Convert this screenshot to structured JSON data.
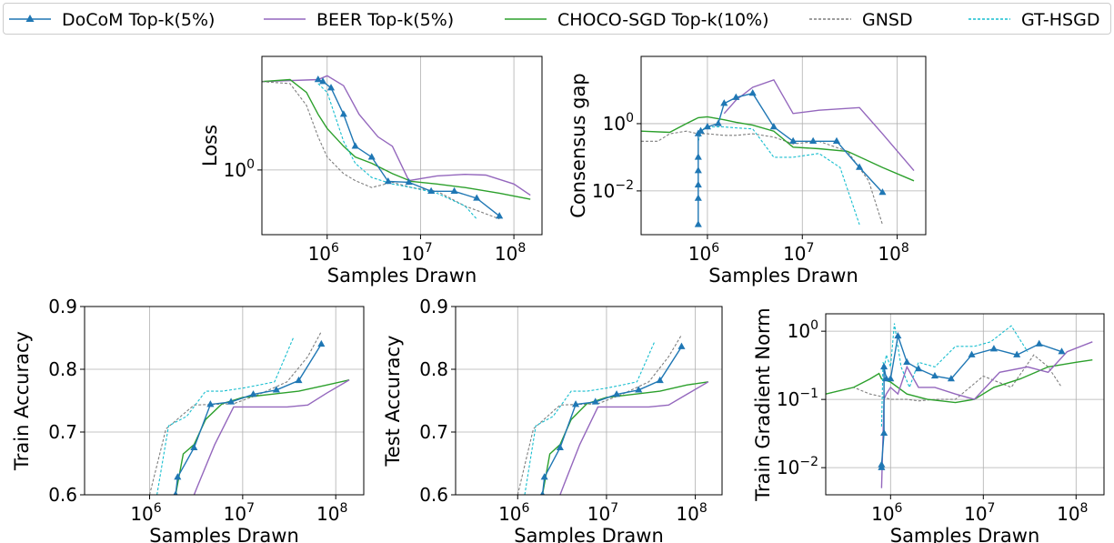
{
  "legend": [
    {
      "label": "DoCoM Top-k(5%)"
    },
    {
      "label": "BEER Top-k(5%)"
    },
    {
      "label": "CHOCO-SGD Top-k(10%)"
    },
    {
      "label": "GNSD"
    },
    {
      "label": "GT-HSGD"
    }
  ],
  "styles": {
    "DoCoM": {
      "color": "#1f77b4",
      "dash": "",
      "marker": true
    },
    "BEER": {
      "color": "#9467bd",
      "dash": "",
      "marker": false
    },
    "CHOCO": {
      "color": "#2ca02c",
      "dash": "",
      "marker": false
    },
    "GNSD": {
      "color": "#7f7f7f",
      "dash": "3,2",
      "marker": false
    },
    "GTHSGD": {
      "color": "#17becf",
      "dash": "3,2",
      "marker": false
    }
  },
  "chart_data": [
    {
      "id": "loss",
      "type": "line",
      "xlabel": "Samples Drawn",
      "ylabel": "Loss",
      "xscale": "log",
      "yscale": "log",
      "xlim": [
        200000,
        200000000
      ],
      "ylim": [
        0.4,
        5.0
      ],
      "xticks": [
        {
          "v": 1000000,
          "label": "10",
          "exp": "6"
        },
        {
          "v": 10000000,
          "label": "10",
          "exp": "7"
        },
        {
          "v": 100000000,
          "label": "10",
          "exp": "8"
        }
      ],
      "yticks": [
        {
          "v": 1.0,
          "label": "10",
          "exp": "0"
        }
      ],
      "grid": true,
      "series": [
        {
          "name": "BEER",
          "x": [
            200000.0,
            800000.0,
            1000000.0,
            1500000.0,
            2200000.0,
            3500000.0,
            5000000.0,
            7500000.0,
            15000000.0,
            30000000.0,
            50000000.0,
            100000000.0,
            150000000.0
          ],
          "y": [
            3.5,
            3.6,
            3.8,
            3.3,
            2.2,
            1.6,
            1.4,
            0.86,
            0.92,
            0.94,
            0.93,
            0.82,
            0.7
          ]
        },
        {
          "name": "CHOCO",
          "x": [
            200000.0,
            400000.0,
            600000.0,
            800000.0,
            1000000.0,
            1500000.0,
            2000000.0,
            3000000.0,
            5000000.0,
            8000000.0,
            15000000.0,
            30000000.0,
            70000000.0,
            150000000.0
          ],
          "y": [
            3.5,
            3.6,
            3.0,
            2.2,
            1.8,
            1.4,
            1.2,
            1.1,
            0.95,
            0.85,
            0.82,
            0.78,
            0.72,
            0.66
          ]
        },
        {
          "name": "GNSD",
          "x": [
            200000.0,
            400000.0,
            600000.0,
            800000.0,
            1000000.0,
            1500000.0,
            2000000.0,
            3000000.0,
            5000000.0,
            8000000.0,
            15000000.0,
            30000000.0,
            70000000.0
          ],
          "y": [
            3.5,
            3.4,
            2.5,
            1.6,
            1.2,
            0.95,
            0.86,
            0.78,
            0.84,
            0.78,
            0.74,
            0.6,
            0.5
          ]
        },
        {
          "name": "GTHSGD",
          "x": [
            800000.0,
            1000000.0,
            1200000.0,
            1500000.0,
            2000000.0,
            3000000.0,
            5000000.0,
            8000000.0,
            15000000.0,
            30000000.0,
            40000000.0
          ],
          "y": [
            3.4,
            3.0,
            2.2,
            1.5,
            1.1,
            0.9,
            0.82,
            0.78,
            0.72,
            0.6,
            0.5
          ]
        },
        {
          "name": "DoCoM",
          "x": [
            800000.0,
            900000.0,
            1100000.0,
            1500000.0,
            2000000.0,
            3000000.0,
            4500000.0,
            7500000.0,
            13000000.0,
            23000000.0,
            40000000.0,
            70000000.0
          ],
          "y": [
            3.6,
            3.5,
            3.2,
            2.2,
            1.4,
            1.2,
            0.85,
            0.84,
            0.74,
            0.74,
            0.67,
            0.52
          ]
        }
      ]
    },
    {
      "id": "consensus",
      "type": "line",
      "xlabel": "Samples Drawn",
      "ylabel": "Consensus gap",
      "xscale": "log",
      "yscale": "log",
      "xlim": [
        200000,
        200000000
      ],
      "ylim": [
        0.0005,
        100
      ],
      "xticks": [
        {
          "v": 1000000,
          "label": "10",
          "exp": "6"
        },
        {
          "v": 10000000,
          "label": "10",
          "exp": "7"
        },
        {
          "v": 100000000,
          "label": "10",
          "exp": "8"
        }
      ],
      "yticks": [
        {
          "v": 0.01,
          "label": "10",
          "exp": "−2"
        },
        {
          "v": 1.0,
          "label": "10",
          "exp": "0"
        }
      ],
      "grid": true,
      "series": [
        {
          "name": "GNSD",
          "x": [
            200000.0,
            300000.0,
            400000.0,
            600000.0,
            800000.0,
            1000000.0,
            1500000.0,
            2000000.0,
            3000000.0,
            5000000.0,
            8000000.0,
            15000000.0,
            30000000.0,
            50000000.0,
            70000000.0
          ],
          "y": [
            0.3,
            0.3,
            0.5,
            0.6,
            0.5,
            0.5,
            0.45,
            0.45,
            0.5,
            0.4,
            0.25,
            0.3,
            0.15,
            0.02,
            0.001
          ]
        },
        {
          "name": "CHOCO",
          "x": [
            200000.0,
            400000.0,
            600000.0,
            800000.0,
            1000000.0,
            1500000.0,
            2000000.0,
            3000000.0,
            5000000.0,
            8000000.0,
            15000000.0,
            30000000.0,
            70000000.0,
            150000000.0
          ],
          "y": [
            0.6,
            0.55,
            1.0,
            1.5,
            1.6,
            1.3,
            1.1,
            0.9,
            0.6,
            0.2,
            0.18,
            0.15,
            0.05,
            0.02
          ]
        },
        {
          "name": "BEER",
          "x": [
            1500000.0,
            2000000.0,
            3000000.0,
            5000000.0,
            8000000.0,
            15000000.0,
            40000000.0,
            70000000.0,
            150000000.0
          ],
          "y": [
            2.0,
            5.0,
            12.0,
            20.0,
            2.0,
            2.5,
            3.0,
            0.5,
            0.04
          ]
        },
        {
          "name": "GTHSGD",
          "x": [
            800000.0,
            850000.0,
            900000.0,
            1000000.0,
            1500000.0,
            2000000.0,
            3000000.0,
            5000000.0,
            8000000.0,
            15000000.0,
            25000000.0,
            40000000.0
          ],
          "y": [
            0.3,
            0.5,
            0.7,
            0.8,
            0.8,
            0.75,
            0.7,
            0.1,
            0.1,
            0.13,
            0.05,
            0.001
          ]
        },
        {
          "name": "DoCoM",
          "x": [
            800000.0,
            800000.0,
            800000.0,
            800000.0,
            800000.0,
            800000.0,
            850000.0,
            1000000.0,
            1300000.0,
            1500000.0,
            2000000.0,
            3000000.0,
            5000000.0,
            8000000.0,
            13000000.0,
            23000000.0,
            40000000.0,
            70000000.0
          ],
          "y": [
            0.001,
            0.006,
            0.015,
            0.04,
            0.1,
            0.5,
            0.6,
            0.8,
            1.0,
            4.0,
            6.0,
            8.0,
            0.8,
            0.3,
            0.3,
            0.3,
            0.05,
            0.009
          ]
        }
      ]
    },
    {
      "id": "train_acc",
      "type": "line",
      "xlabel": "Samples Drawn",
      "ylabel": "Train Accuracy",
      "xscale": "log",
      "yscale": "linear",
      "xlim": [
        200000,
        200000000
      ],
      "ylim": [
        0.6,
        0.9
      ],
      "xticks": [
        {
          "v": 1000000,
          "label": "10",
          "exp": "6"
        },
        {
          "v": 10000000,
          "label": "10",
          "exp": "7"
        },
        {
          "v": 100000000,
          "label": "10",
          "exp": "8"
        }
      ],
      "yticks": [
        {
          "v": 0.6,
          "label": "0.6"
        },
        {
          "v": 0.7,
          "label": "0.7"
        },
        {
          "v": 0.8,
          "label": "0.8"
        },
        {
          "v": 0.9,
          "label": "0.9"
        }
      ],
      "grid": true,
      "series": [
        {
          "name": "GNSD",
          "x": [
            1000000.0,
            1500000.0,
            3000000.0,
            8000000.0,
            15000000.0,
            30000000.0,
            50000000.0,
            70000000.0
          ],
          "y": [
            0.6,
            0.705,
            0.743,
            0.745,
            0.76,
            0.78,
            0.82,
            0.86
          ]
        },
        {
          "name": "GTHSGD",
          "x": [
            1200000.0,
            1600000.0,
            2500000.0,
            4000000.0,
            6000000.0,
            10000000.0,
            15000000.0,
            22000000.0,
            35000000.0
          ],
          "y": [
            0.6,
            0.71,
            0.725,
            0.765,
            0.765,
            0.77,
            0.775,
            0.78,
            0.85
          ]
        },
        {
          "name": "CHOCO",
          "x": [
            1900000.0,
            2300000.0,
            3000000.0,
            4000000.0,
            6000000.0,
            10000000.0,
            20000000.0,
            40000000.0,
            80000000.0,
            140000000.0
          ],
          "y": [
            0.6,
            0.665,
            0.68,
            0.72,
            0.745,
            0.755,
            0.76,
            0.765,
            0.775,
            0.783
          ]
        },
        {
          "name": "BEER",
          "x": [
            3000000.0,
            3300000.0,
            5000000.0,
            8000000.0,
            15000000.0,
            30000000.0,
            50000000.0,
            80000000.0,
            140000000.0
          ],
          "y": [
            0.6,
            0.615,
            0.68,
            0.74,
            0.74,
            0.74,
            0.743,
            0.762,
            0.783
          ]
        },
        {
          "name": "DoCoM",
          "x": [
            1900000.0,
            2000000.0,
            3000000.0,
            4500000.0,
            7500000.0,
            13000000.0,
            23000000.0,
            40000000.0,
            70000000.0
          ],
          "y": [
            0.6,
            0.628,
            0.675,
            0.744,
            0.748,
            0.76,
            0.767,
            0.782,
            0.84
          ]
        }
      ]
    },
    {
      "id": "test_acc",
      "type": "line",
      "xlabel": "Samples Drawn",
      "ylabel": "Test Accuracy",
      "xscale": "log",
      "yscale": "linear",
      "xlim": [
        200000,
        200000000
      ],
      "ylim": [
        0.6,
        0.9
      ],
      "xticks": [
        {
          "v": 1000000,
          "label": "10",
          "exp": "6"
        },
        {
          "v": 10000000,
          "label": "10",
          "exp": "7"
        },
        {
          "v": 100000000,
          "label": "10",
          "exp": "8"
        }
      ],
      "yticks": [
        {
          "v": 0.6,
          "label": "0.6"
        },
        {
          "v": 0.7,
          "label": "0.7"
        },
        {
          "v": 0.8,
          "label": "0.8"
        },
        {
          "v": 0.9,
          "label": "0.9"
        }
      ],
      "grid": true,
      "series": [
        {
          "name": "GNSD",
          "x": [
            1000000.0,
            1500000.0,
            3000000.0,
            8000000.0,
            15000000.0,
            30000000.0,
            50000000.0,
            70000000.0
          ],
          "y": [
            0.6,
            0.705,
            0.743,
            0.745,
            0.76,
            0.78,
            0.82,
            0.855
          ]
        },
        {
          "name": "GTHSGD",
          "x": [
            1200000.0,
            1600000.0,
            2500000.0,
            4000000.0,
            6000000.0,
            10000000.0,
            15000000.0,
            22000000.0,
            35000000.0
          ],
          "y": [
            0.6,
            0.71,
            0.725,
            0.765,
            0.765,
            0.77,
            0.775,
            0.78,
            0.845
          ]
        },
        {
          "name": "CHOCO",
          "x": [
            1900000.0,
            2300000.0,
            3000000.0,
            4000000.0,
            6000000.0,
            10000000.0,
            20000000.0,
            40000000.0,
            80000000.0,
            140000000.0
          ],
          "y": [
            0.6,
            0.665,
            0.68,
            0.72,
            0.745,
            0.755,
            0.76,
            0.765,
            0.775,
            0.78
          ]
        },
        {
          "name": "BEER",
          "x": [
            3000000.0,
            3300000.0,
            5000000.0,
            8000000.0,
            15000000.0,
            30000000.0,
            50000000.0,
            80000000.0,
            140000000.0
          ],
          "y": [
            0.6,
            0.615,
            0.68,
            0.74,
            0.74,
            0.74,
            0.743,
            0.76,
            0.78
          ]
        },
        {
          "name": "DoCoM",
          "x": [
            1900000.0,
            2000000.0,
            3000000.0,
            4500000.0,
            7500000.0,
            13000000.0,
            23000000.0,
            40000000.0,
            70000000.0
          ],
          "y": [
            0.6,
            0.628,
            0.675,
            0.744,
            0.748,
            0.76,
            0.767,
            0.782,
            0.836
          ]
        }
      ]
    },
    {
      "id": "grad_norm",
      "type": "line",
      "xlabel": "Samples Drawn",
      "ylabel": "Train Gradient Norm",
      "xscale": "log",
      "yscale": "log",
      "xlim": [
        200000,
        200000000
      ],
      "ylim": [
        0.004,
        1.8
      ],
      "xticks": [
        {
          "v": 1000000,
          "label": "10",
          "exp": "6"
        },
        {
          "v": 10000000,
          "label": "10",
          "exp": "7"
        },
        {
          "v": 100000000,
          "label": "10",
          "exp": "8"
        }
      ],
      "yticks": [
        {
          "v": 0.01,
          "label": "10",
          "exp": "−2"
        },
        {
          "v": 0.1,
          "label": "10",
          "exp": "−1"
        },
        {
          "v": 1.0,
          "label": "10",
          "exp": "0"
        }
      ],
      "grid": true,
      "series": [
        {
          "name": "GNSD",
          "x": [
            200000.0,
            400000.0,
            600000.0,
            800000.0,
            1000000.0,
            1500000.0,
            2000000.0,
            3000000.0,
            5000000.0,
            10000000.0,
            20000000.0,
            35000000.0,
            50000000.0,
            70000000.0
          ],
          "y": [
            0.12,
            0.15,
            0.12,
            0.11,
            0.1,
            0.1,
            0.095,
            0.1,
            0.1,
            0.22,
            0.15,
            0.45,
            0.3,
            0.15
          ]
        },
        {
          "name": "CHOCO",
          "x": [
            200000.0,
            400000.0,
            600000.0,
            750000.0,
            800000.0,
            1000000.0,
            1500000.0,
            2500000.0,
            5000000.0,
            8000000.0,
            13000000.0,
            25000000.0,
            50000000.0,
            100000000.0,
            150000000.0
          ],
          "y": [
            0.12,
            0.15,
            0.2,
            0.24,
            0.2,
            0.18,
            0.12,
            0.1,
            0.09,
            0.1,
            0.15,
            0.2,
            0.3,
            0.35,
            0.38
          ]
        },
        {
          "name": "BEER",
          "x": [
            800000.0,
            850000.0,
            900000.0,
            1000000.0,
            1200000.0,
            1500000.0,
            2000000.0,
            3000000.0,
            5000000.0,
            8000000.0,
            15000000.0,
            30000000.0,
            50000000.0,
            80000000.0,
            150000000.0
          ],
          "y": [
            0.005,
            0.1,
            0.12,
            0.15,
            0.12,
            0.3,
            0.15,
            0.15,
            0.12,
            0.1,
            0.25,
            0.3,
            0.25,
            0.5,
            0.7
          ]
        },
        {
          "name": "GTHSGD",
          "x": [
            800000.0,
            830000.0,
            860000.0,
            900000.0,
            1000000.0,
            1100000.0,
            1300000.0,
            1600000.0,
            2000000.0,
            3000000.0,
            5000000.0,
            8000000.0,
            12000000.0,
            20000000.0,
            30000000.0
          ],
          "y": [
            0.04,
            0.35,
            0.3,
            0.45,
            0.3,
            1.3,
            0.3,
            0.15,
            0.35,
            0.3,
            0.6,
            0.6,
            0.7,
            1.2,
            0.5
          ]
        },
        {
          "name": "DoCoM",
          "x": [
            800000.0,
            800000.0,
            850000.0,
            850000.0,
            900000.0,
            1000000.0,
            1200000.0,
            1500000.0,
            2000000.0,
            3000000.0,
            4500000.0,
            7500000.0,
            13000000.0,
            23000000.0,
            40000000.0,
            70000000.0
          ],
          "y": [
            0.01,
            0.011,
            0.032,
            0.3,
            0.2,
            0.2,
            0.85,
            0.35,
            0.28,
            0.22,
            0.2,
            0.45,
            0.55,
            0.45,
            0.65,
            0.5
          ]
        }
      ]
    }
  ]
}
